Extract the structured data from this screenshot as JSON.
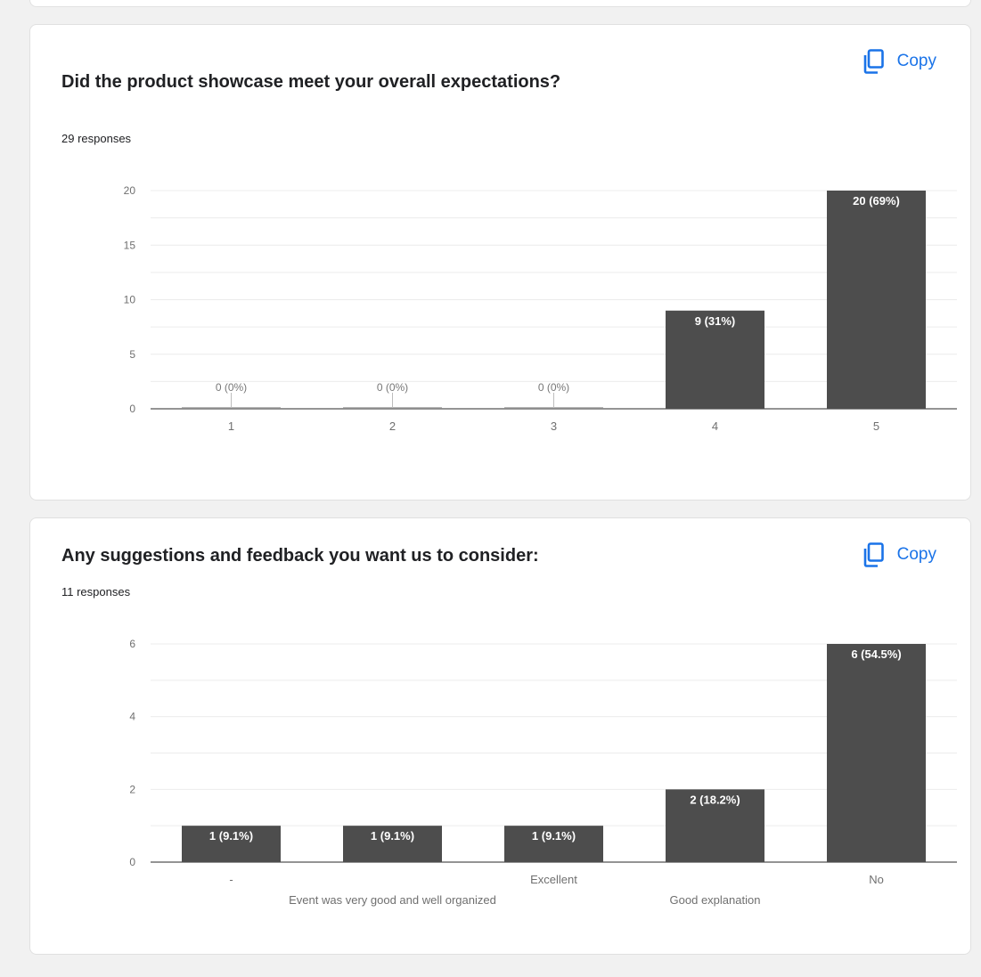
{
  "colors": {
    "bar": "#4d4d4d",
    "grid": "#ececec",
    "axis": "#555555",
    "accent": "#1a73e8",
    "text": "#202124",
    "tick": "#6f6f6f"
  },
  "icons": {
    "copy": "copy-icon"
  },
  "questions": [
    {
      "title": "Did the product showcase meet your overall expectations?",
      "responses": "29 responses",
      "copy_label": "Copy",
      "chart_data": {
        "type": "bar",
        "categories": [
          "1",
          "2",
          "3",
          "4",
          "5"
        ],
        "values": [
          0,
          0,
          0,
          9,
          20
        ],
        "data_labels": [
          "0 (0%)",
          "0 (0%)",
          "0 (0%)",
          "9 (31%)",
          "20 (69%)"
        ],
        "ylim": [
          0,
          20
        ],
        "yticks": [
          0,
          5,
          10,
          15,
          20
        ],
        "grid": true
      }
    },
    {
      "title": "Any suggestions and feedback you want us to consider:",
      "responses": "11 responses",
      "copy_label": "Copy",
      "chart_data": {
        "type": "bar",
        "categories": [
          "-",
          "Event was very good and well organized",
          "Excellent",
          "Good explanation",
          "No"
        ],
        "values": [
          1,
          1,
          1,
          2,
          6
        ],
        "data_labels": [
          "1 (9.1%)",
          "1 (9.1%)",
          "1 (9.1%)",
          "2 (18.2%)",
          "6 (54.5%)"
        ],
        "ylim": [
          0,
          6
        ],
        "yticks": [
          0,
          2,
          4,
          6
        ],
        "grid": true
      }
    }
  ]
}
